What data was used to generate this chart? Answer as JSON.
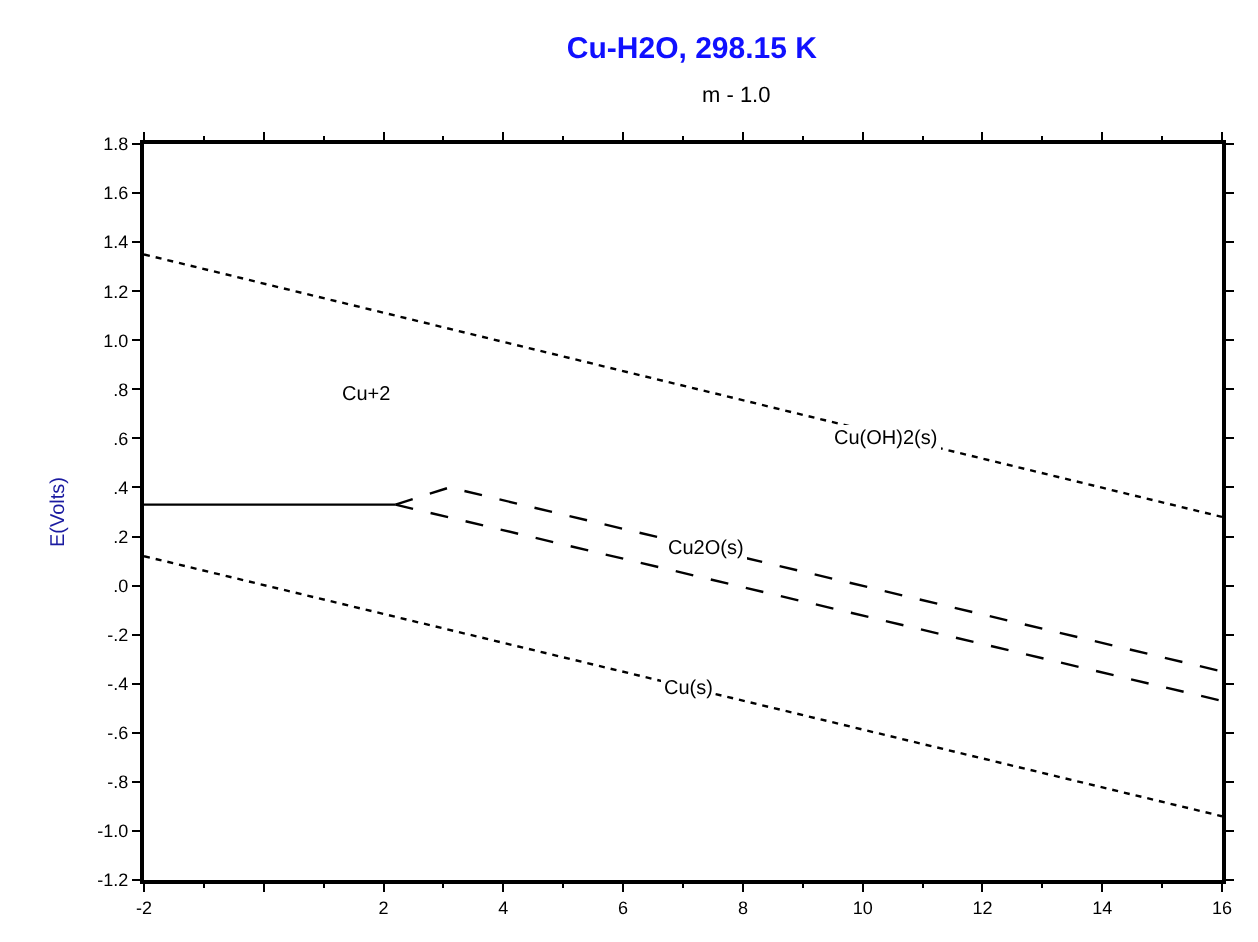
{
  "chart_data": {
    "type": "line",
    "title": "Cu-H2O, 298.15 K",
    "subtitle": "m - 1.0",
    "ylabel": "E(Volts)",
    "xlim": [
      -2,
      16
    ],
    "xticks": [
      -2,
      {
        "value": 0,
        "label": null
      },
      2,
      4,
      6,
      8,
      10,
      12,
      14,
      16
    ],
    "ylim": [
      -1.2,
      1.8
    ],
    "yticks": [
      {
        "value": -1.2,
        "label": "-1.2"
      },
      {
        "value": -1.0,
        "label": "-1.0"
      },
      {
        "value": -0.8,
        "label": "-.8"
      },
      {
        "value": -0.6,
        "label": "-.6"
      },
      {
        "value": -0.4,
        "label": "-.4"
      },
      {
        "value": -0.2,
        "label": "-.2"
      },
      {
        "value": 0,
        "label": ".0"
      },
      {
        "value": 0.2,
        "label": ".2"
      },
      {
        "value": 0.4,
        "label": ".4"
      },
      {
        "value": 0.6,
        "label": ".6"
      },
      {
        "value": 0.8,
        "label": ".8"
      },
      {
        "value": 1.0,
        "label": "1.0"
      },
      {
        "value": 1.2,
        "label": "1.2"
      },
      {
        "value": 1.4,
        "label": "1.4"
      },
      {
        "value": 1.6,
        "label": "1.6"
      },
      {
        "value": 1.8,
        "label": "1.8"
      }
    ],
    "marker": "none",
    "series": [
      {
        "color": "#000000",
        "line_style": "dotted",
        "x": [
          -2,
          16
        ],
        "values": [
          1.35,
          0.28
        ]
      },
      {
        "color": "#000000",
        "line_style": "dotted",
        "x": [
          -2,
          16
        ],
        "values": [
          0.12,
          -0.94
        ]
      },
      {
        "color": "#000000",
        "line_style": "solid",
        "x": [
          -2,
          2.2
        ],
        "values": [
          0.33,
          0.33
        ]
      },
      {
        "color": "#000000",
        "line_style": "dashed",
        "x": [
          2.2,
          3.1,
          16
        ],
        "values": [
          0.33,
          0.4,
          -0.35
        ]
      },
      {
        "color": "#000000",
        "line_style": "dashed",
        "x": [
          2.2,
          16
        ],
        "values": [
          0.33,
          -0.47
        ]
      }
    ],
    "annotations": [
      "Cu+2",
      {
        "text": "Cu(OH)2(s)",
        "x": 10.4,
        "y": 0.6
      },
      {
        "text": "Cu2O(s)",
        "x": 7.4,
        "y": 0.15
      },
      {
        "text": "Cu(s)",
        "x": 7.1,
        "y": -0.42
      }
    ]
  }
}
